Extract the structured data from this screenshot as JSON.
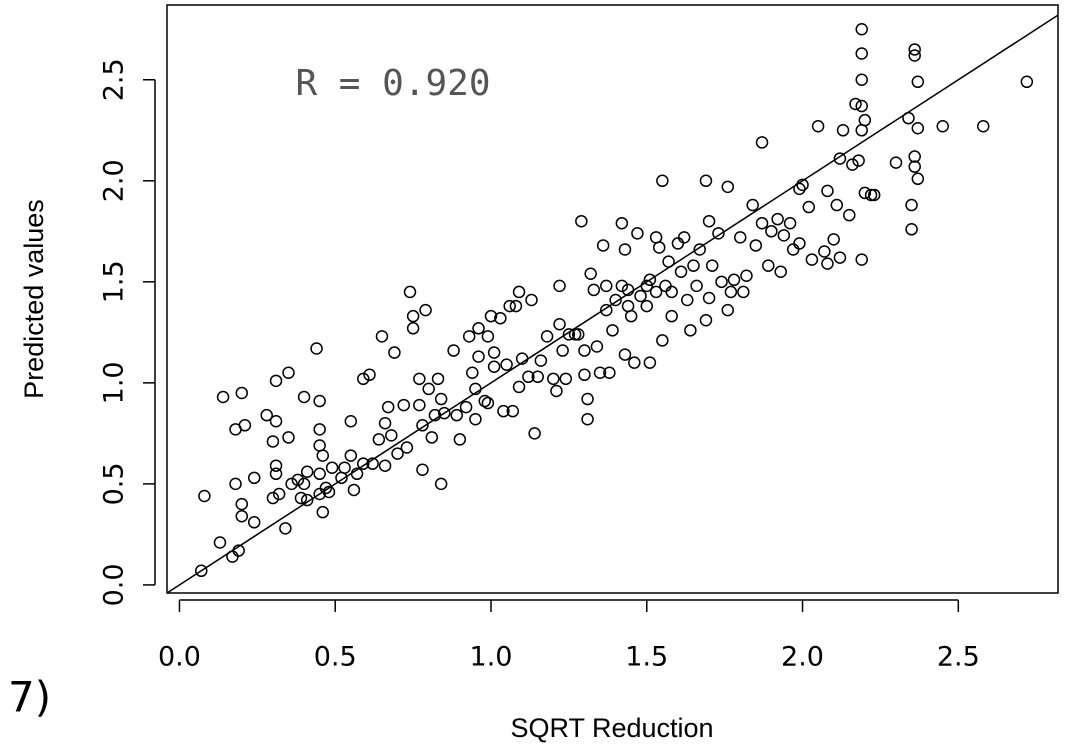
{
  "chart_data": {
    "type": "scatter",
    "panel_label": "7)",
    "annotation": "R = 0.920",
    "x_label": "SQRT Reduction",
    "y_label": "Predicted values",
    "xlim": [
      -0.04,
      2.82
    ],
    "ylim": [
      -0.04,
      2.87
    ],
    "xticks": [
      {
        "value": 0,
        "label": "0.0"
      },
      0.5,
      {
        "value": 1,
        "label": "1.0"
      },
      1.5,
      {
        "value": 2,
        "label": "2.0"
      },
      2.5
    ],
    "yticks": [
      {
        "value": 0,
        "label": "0.0"
      },
      0.5,
      {
        "value": 1,
        "label": "1.0"
      },
      1.5,
      {
        "value": 2,
        "label": "2.0"
      },
      2.5
    ],
    "fit_line": {
      "slope": 1,
      "intercept": 0
    },
    "color": "#000000",
    "x": [
      0.07,
      0.08,
      0.13,
      0.14,
      0.17,
      0.19,
      0.18,
      0.2,
      0.21,
      0.18,
      0.2,
      0.2,
      0.24,
      0.24,
      0.28,
      0.3,
      0.31,
      0.31,
      0.35,
      0.35,
      0.31,
      0.31,
      0.3,
      0.32,
      0.34,
      0.36,
      0.38,
      0.4,
      0.4,
      0.41,
      0.41,
      0.39,
      0.44,
      0.45,
      0.45,
      0.45,
      0.45,
      0.45,
      0.46,
      0.46,
      0.47,
      0.48,
      0.49,
      0.52,
      0.53,
      0.55,
      0.55,
      0.56,
      0.57,
      0.59,
      0.59,
      0.61,
      0.62,
      0.64,
      0.65,
      0.66,
      0.67,
      0.66,
      0.68,
      0.69,
      0.7,
      0.72,
      0.73,
      0.74,
      0.75,
      0.75,
      0.77,
      0.77,
      0.78,
      0.78,
      0.79,
      0.8,
      0.81,
      0.82,
      0.84,
      0.83,
      0.84,
      0.85,
      0.88,
      0.89,
      0.9,
      0.92,
      0.93,
      0.94,
      0.95,
      0.95,
      0.96,
      0.96,
      0.98,
      0.99,
      0.99,
      1.0,
      1.01,
      1.01,
      1.03,
      1.04,
      1.05,
      1.06,
      1.07,
      1.08,
      1.09,
      1.09,
      1.1,
      1.12,
      1.13,
      1.14,
      1.15,
      1.16,
      1.18,
      1.2,
      1.21,
      1.22,
      1.22,
      1.23,
      1.24,
      1.25,
      1.27,
      1.28,
      1.29,
      1.3,
      1.3,
      1.31,
      1.31,
      1.32,
      1.33,
      1.34,
      1.35,
      1.36,
      1.37,
      1.37,
      1.38,
      1.39,
      1.4,
      1.42,
      1.42,
      1.43,
      1.43,
      1.44,
      1.44,
      1.45,
      1.46,
      1.47,
      1.48,
      1.5,
      1.5,
      1.51,
      1.51,
      1.53,
      1.53,
      1.54,
      1.55,
      1.55,
      1.56,
      1.57,
      1.58,
      1.58,
      1.6,
      1.61,
      1.62,
      1.63,
      1.64,
      1.65,
      1.66,
      1.67,
      1.69,
      1.69,
      1.7,
      1.7,
      1.71,
      1.73,
      1.74,
      1.76,
      1.76,
      1.77,
      1.78,
      1.8,
      1.81,
      1.82,
      1.84,
      1.85,
      1.87,
      1.87,
      1.89,
      1.9,
      1.92,
      1.93,
      1.94,
      1.96,
      1.97,
      1.99,
      1.99,
      2.0,
      2.02,
      2.03,
      2.05,
      2.07,
      2.08,
      2.08,
      2.1,
      2.11,
      2.12,
      2.12,
      2.13,
      2.15,
      2.16,
      2.17,
      2.18,
      2.19,
      2.19,
      2.19,
      2.19,
      2.19,
      2.2,
      2.19,
      2.2,
      2.22,
      2.23,
      2.3,
      2.34,
      2.35,
      2.35,
      2.36,
      2.36,
      2.36,
      2.36,
      2.37,
      2.37,
      2.37,
      2.45,
      2.58,
      2.72
    ],
    "values": [
      0.07,
      0.44,
      0.21,
      0.93,
      0.14,
      0.17,
      0.77,
      0.95,
      0.79,
      0.5,
      0.4,
      0.34,
      0.31,
      0.53,
      0.84,
      0.71,
      0.81,
      1.01,
      1.05,
      0.73,
      0.59,
      0.55,
      0.43,
      0.45,
      0.28,
      0.5,
      0.52,
      0.93,
      0.5,
      0.56,
      0.42,
      0.43,
      1.17,
      0.91,
      0.77,
      0.69,
      0.45,
      0.55,
      0.36,
      0.64,
      0.48,
      0.46,
      0.58,
      0.53,
      0.58,
      0.81,
      0.64,
      0.47,
      0.55,
      0.6,
      1.02,
      1.04,
      0.6,
      0.72,
      1.23,
      0.8,
      0.88,
      0.59,
      0.74,
      1.15,
      0.65,
      0.89,
      0.68,
      1.45,
      1.27,
      1.33,
      0.89,
      1.02,
      0.79,
      0.57,
      1.36,
      0.97,
      0.73,
      0.84,
      0.5,
      1.02,
      0.92,
      0.85,
      1.16,
      0.84,
      0.72,
      0.88,
      1.23,
      1.05,
      0.97,
      0.82,
      1.27,
      1.13,
      0.91,
      1.23,
      0.9,
      1.33,
      1.08,
      1.15,
      1.32,
      0.86,
      1.09,
      1.38,
      0.86,
      1.38,
      1.45,
      0.98,
      1.12,
      1.03,
      1.41,
      0.75,
      1.03,
      1.11,
      1.23,
      1.02,
      0.96,
      1.48,
      1.29,
      1.16,
      1.02,
      1.24,
      1.24,
      1.24,
      1.8,
      1.16,
      1.04,
      0.92,
      0.82,
      1.54,
      1.46,
      1.18,
      1.05,
      1.68,
      1.36,
      1.48,
      1.05,
      1.26,
      1.41,
      1.48,
      1.79,
      1.66,
      1.14,
      1.38,
      1.46,
      1.33,
      1.1,
      1.74,
      1.43,
      1.48,
      1.38,
      1.51,
      1.1,
      1.45,
      1.72,
      1.67,
      1.21,
      2.0,
      1.48,
      1.6,
      1.33,
      1.45,
      1.69,
      1.55,
      1.72,
      1.41,
      1.26,
      1.58,
      1.48,
      1.66,
      1.31,
      2.0,
      1.8,
      1.42,
      1.58,
      1.74,
      1.5,
      1.36,
      1.97,
      1.45,
      1.51,
      1.72,
      1.45,
      1.53,
      1.88,
      1.68,
      2.19,
      1.79,
      1.58,
      1.75,
      1.81,
      1.55,
      1.73,
      1.79,
      1.66,
      1.96,
      1.69,
      1.98,
      1.87,
      1.61,
      2.27,
      1.65,
      1.95,
      1.59,
      1.71,
      1.88,
      1.62,
      2.11,
      2.25,
      1.83,
      2.08,
      2.38,
      2.1,
      2.25,
      2.75,
      2.63,
      2.5,
      2.37,
      1.94,
      1.61,
      2.3,
      1.93,
      1.93,
      2.09,
      2.31,
      1.88,
      1.76,
      2.65,
      2.12,
      2.07,
      2.62,
      2.26,
      2.01,
      2.49,
      2.27,
      2.27,
      2.49
    ]
  }
}
